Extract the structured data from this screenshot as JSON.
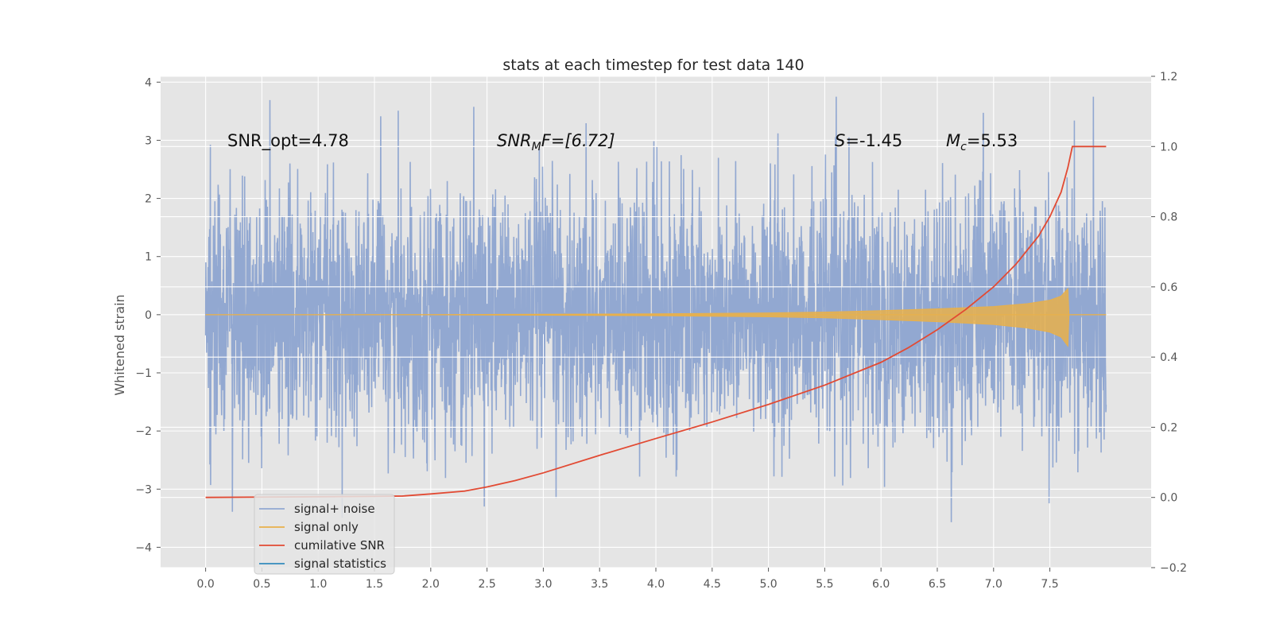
{
  "chart_data": {
    "type": "line",
    "title": "stats at each timestep for test data 140",
    "ylabel": "Whitened strain",
    "xlim": [
      -0.4,
      8.4
    ],
    "ylim": [
      -4.35,
      4.1
    ],
    "y2lim": [
      -0.2,
      1.2
    ],
    "x_ticks": [
      "0.0",
      "0.5",
      "1.0",
      "1.5",
      "2.0",
      "2.5",
      "3.0",
      "3.5",
      "4.0",
      "4.5",
      "5.0",
      "5.5",
      "6.0",
      "6.5",
      "7.0",
      "7.5"
    ],
    "y_ticks": [
      "4",
      "3",
      "2",
      "1",
      "0",
      "−1",
      "−2",
      "−3",
      "−4"
    ],
    "y2_ticks": [
      "1.2",
      "1.0",
      "0.8",
      "0.6",
      "0.4",
      "0.2",
      "0.0",
      "−0.2"
    ],
    "annotations": {
      "snr_opt": "SNR_opt=4.78",
      "snr_mf_main": "SNR",
      "snr_mf_sub": "M",
      "snr_mf_tail": "F=[6.72]",
      "s_main": "S",
      "s_tail": "=-1.45",
      "mc_main": "M",
      "mc_sub": "c",
      "mc_tail": "=5.53"
    },
    "legend_placement": "lower-left",
    "series": [
      {
        "name": "signal+ noise",
        "color": "#92a8d1",
        "description": "whitened noisy strain, approx. Gaussian with std ~1 over t in [0, 8]"
      },
      {
        "name": "signal only",
        "color": "#e8b04b",
        "envelope_x": [
          0.0,
          1.0,
          2.0,
          3.0,
          4.0,
          5.0,
          5.5,
          6.0,
          6.5,
          7.0,
          7.3,
          7.5,
          7.6,
          7.66,
          7.67,
          8.0
        ],
        "envelope_y": [
          0.0,
          0.0,
          0.002,
          0.008,
          0.015,
          0.03,
          0.045,
          0.07,
          0.1,
          0.14,
          0.19,
          0.25,
          0.32,
          0.45,
          0.0,
          0.0
        ]
      },
      {
        "name": "cumilative SNR",
        "color": "#e24a33",
        "axis": "right",
        "x": [
          0.0,
          0.5,
          1.0,
          1.5,
          1.75,
          2.0,
          2.3,
          2.5,
          2.75,
          3.0,
          3.5,
          4.0,
          4.5,
          5.0,
          5.5,
          6.0,
          6.25,
          6.5,
          6.75,
          7.0,
          7.2,
          7.4,
          7.5,
          7.6,
          7.66,
          7.7,
          8.0
        ],
        "y": [
          0.0,
          0.001,
          0.002,
          0.003,
          0.004,
          0.01,
          0.018,
          0.03,
          0.048,
          0.07,
          0.12,
          0.168,
          0.215,
          0.265,
          0.32,
          0.385,
          0.428,
          0.478,
          0.535,
          0.6,
          0.665,
          0.745,
          0.8,
          0.87,
          0.94,
          1.0,
          1.0
        ]
      },
      {
        "name": "signal statistics",
        "color": "#348abd"
      }
    ]
  }
}
